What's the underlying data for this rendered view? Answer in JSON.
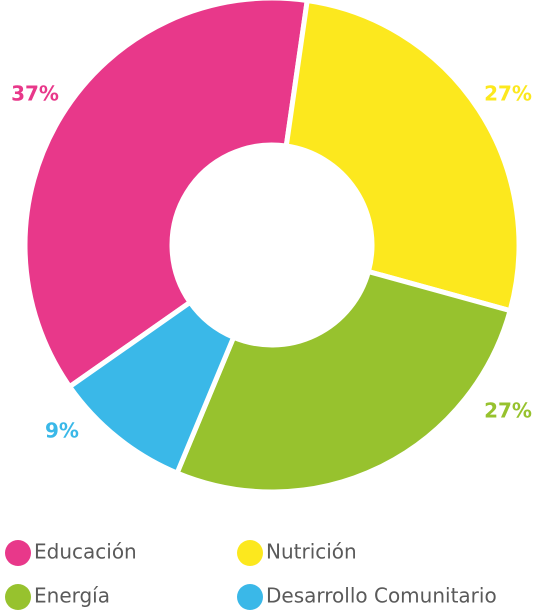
{
  "chart_data": {
    "type": "donut",
    "categories": [
      "Educación",
      "Nutrición",
      "Energía",
      "Desarrollo Comunitario"
    ],
    "values": [
      37,
      27,
      27,
      9
    ],
    "value_labels": [
      "37%",
      "27%",
      "27%",
      "9%"
    ],
    "colors": [
      "#e8388a",
      "#fce81e",
      "#97c22e",
      "#3ab8e8"
    ]
  }
}
